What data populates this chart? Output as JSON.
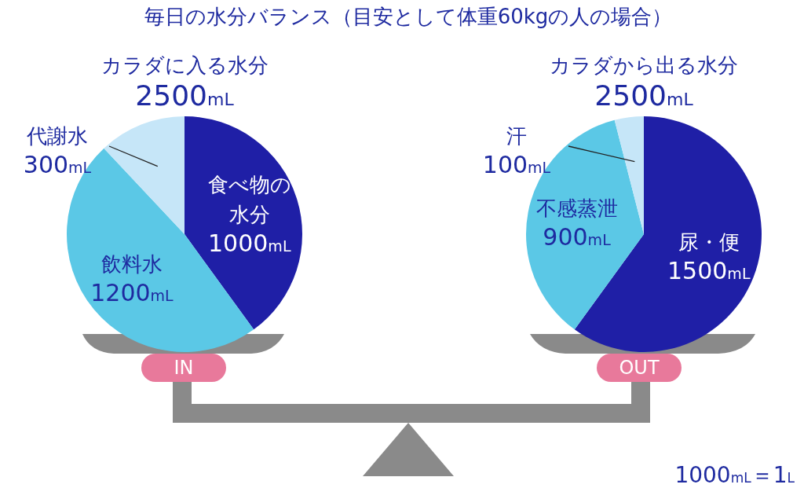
{
  "chart_data": [
    {
      "type": "pie",
      "title": "毎日の水分バランス（目安として体重60kgの人の場合）",
      "subtitle": "カラダに入る水分",
      "categories": [
        "食べ物の水分",
        "飲料水",
        "代謝水"
      ],
      "values": [
        1000,
        1200,
        300
      ],
      "value_labels": [
        "1000mL",
        "1200mL",
        "300mL"
      ],
      "colors": [
        "#1f1fa6",
        "#5bc8e6",
        "#c6e6f8"
      ],
      "legend": false,
      "annotations": [
        "2500mL",
        "IN"
      ]
    },
    {
      "type": "pie",
      "title": "カラダから出る水分",
      "categories": [
        "尿・便",
        "不感蒸泄",
        "汗"
      ],
      "values": [
        1500,
        900,
        100
      ],
      "value_labels": [
        "1500mL",
        "900mL",
        "100mL"
      ],
      "colors": [
        "#1f1fa6",
        "#5bc8e6",
        "#c6e6f8"
      ],
      "legend": false,
      "annotations": [
        "2500mL",
        "OUT",
        "1000mL＝1L"
      ]
    }
  ]
}
